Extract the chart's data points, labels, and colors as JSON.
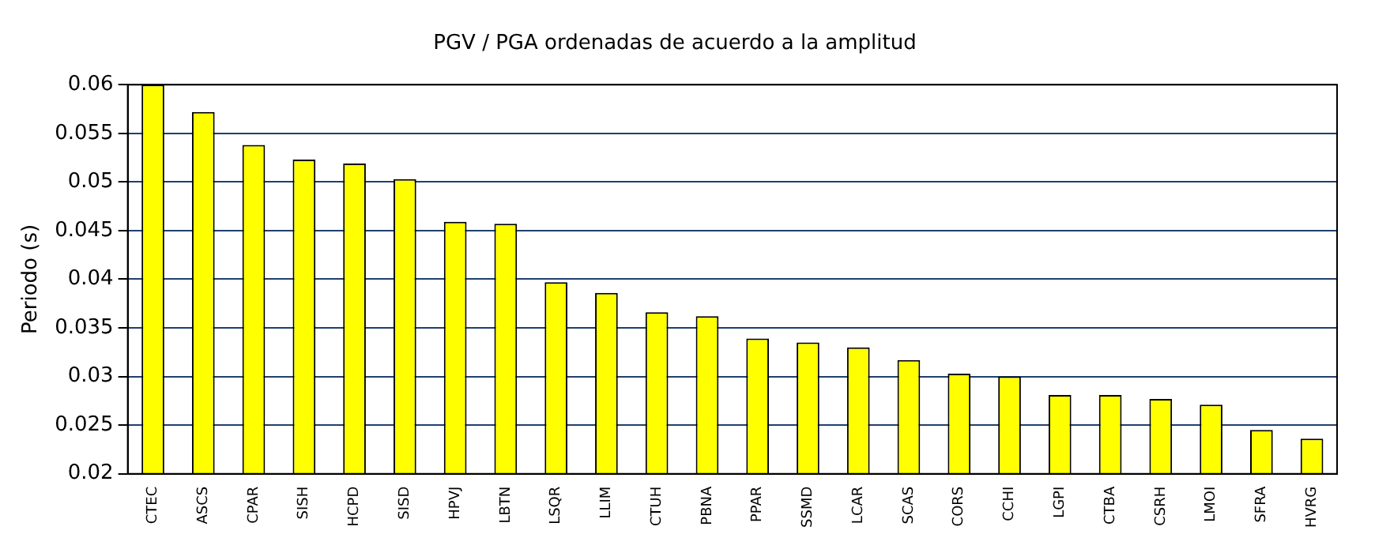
{
  "chart_data": {
    "type": "bar",
    "title": "PGV / PGA ordenadas de acuerdo a la amplitud",
    "ylabel": "Periodo (s)",
    "categories": [
      "CTEC",
      "ASCS",
      "CPAR",
      "SISH",
      "HCPD",
      "SISD",
      "HPVJ",
      "LBTN",
      "LSQR",
      "LLIM",
      "CTUH",
      "PBNA",
      "PPAR",
      "SSMD",
      "LCAR",
      "SCAS",
      "CORS",
      "CCHI",
      "LGPI",
      "CTBA",
      "CSRH",
      "LMOI",
      "SFRA",
      "HVRG"
    ],
    "values": [
      0.06,
      0.0572,
      0.0538,
      0.0523,
      0.0519,
      0.0503,
      0.0459,
      0.0457,
      0.0397,
      0.0386,
      0.0366,
      0.0362,
      0.0339,
      0.0335,
      0.033,
      0.0317,
      0.0303,
      0.03,
      0.0281,
      0.0281,
      0.0277,
      0.0271,
      0.0245,
      0.0236
    ],
    "color": "#ffff00",
    "ylim": [
      0.02,
      0.06
    ],
    "yticks": [
      0.02,
      0.025,
      0.03,
      0.035,
      0.04,
      0.045,
      0.05,
      0.055,
      0.06
    ],
    "grid": "y",
    "legend": false
  }
}
